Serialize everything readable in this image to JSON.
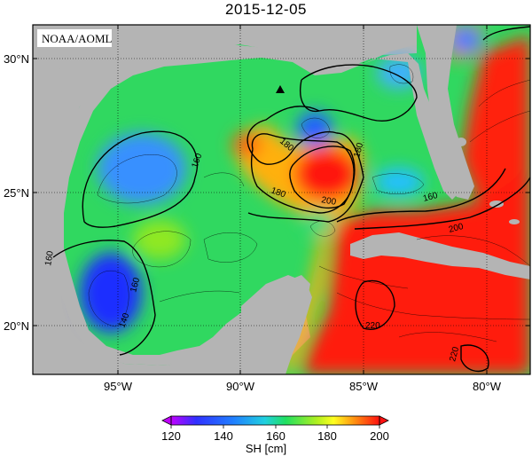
{
  "title": "2015-12-05",
  "credit": "NOAA/AOML",
  "colorbar": {
    "title": "SH [cm]",
    "ticks": [
      "120",
      "140",
      "160",
      "180",
      "200"
    ],
    "range": [
      120,
      200
    ]
  },
  "axes": {
    "lat_labels": [
      "30°N",
      "25°N",
      "20°N"
    ],
    "lon_labels": [
      "95°W",
      "90°W",
      "85°W",
      "80°W"
    ]
  },
  "contour_labels": [
    "160",
    "160",
    "160",
    "180",
    "180",
    "200",
    "180",
    "160",
    "140",
    "200",
    "220",
    "220"
  ],
  "colors": {
    "land": "#b4b4b4",
    "low": "#1e1eff",
    "mid": "#10d060",
    "high": "#ff1a1a"
  },
  "marker": "triangle"
}
